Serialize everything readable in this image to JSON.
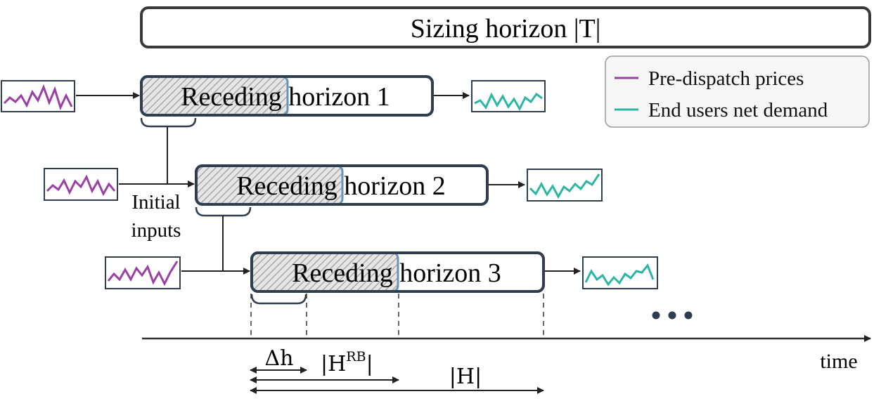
{
  "sizing_horizon": {
    "label": "Sizing horizon |T|"
  },
  "receding_horizons": [
    {
      "label": "Receding horizon 1"
    },
    {
      "label": "Receding horizon 2"
    },
    {
      "label": "Receding horizon 3"
    }
  ],
  "initial_inputs": {
    "line1": "Initial",
    "line2": "inputs"
  },
  "legend": {
    "items": [
      {
        "label": "Pre-dispatch prices",
        "color": "#9b3fa6"
      },
      {
        "label": "End users net demand",
        "color": "#2cb5a4"
      }
    ]
  },
  "timeline": {
    "axis_label": "time",
    "delta_h": "Δh",
    "h_rb": "|H",
    "h_rb_sup": "RB",
    "h": "|H|"
  },
  "colors": {
    "box_border": "#2f3e4f",
    "hatched_border": "#6a93b8",
    "price": "#9b3fa6",
    "demand": "#2cb5a4"
  }
}
